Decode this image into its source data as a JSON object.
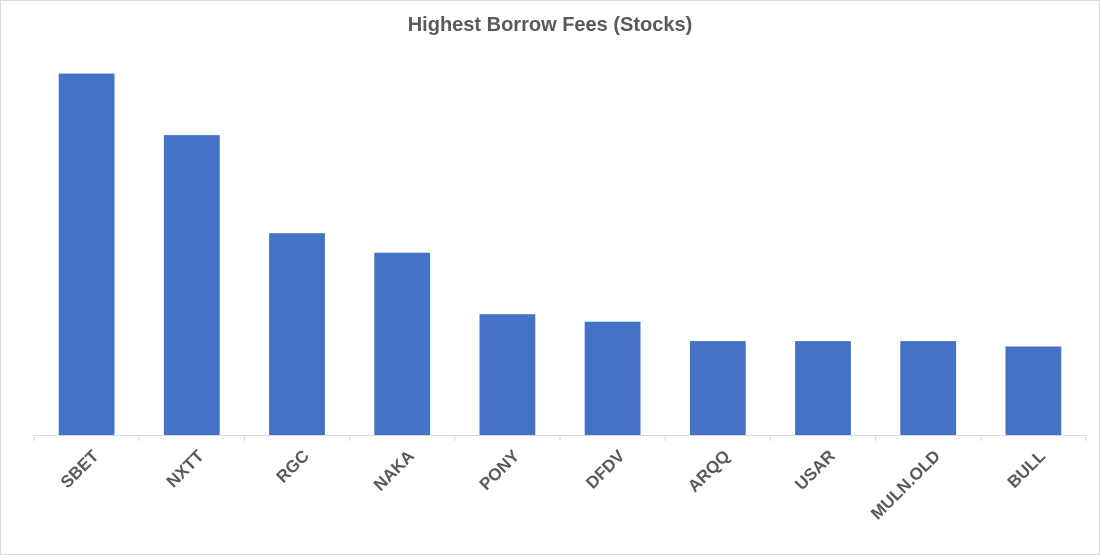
{
  "chart_data": {
    "type": "bar",
    "title": "Highest Borrow Fees (Stocks)",
    "categories": [
      "SBET",
      "NXTT",
      "RGC",
      "NAKA",
      "PONY",
      "DFDV",
      "ARQQ",
      "USAR",
      "MULN.OLD",
      "BULL"
    ],
    "values": [
      335,
      278,
      187,
      169,
      112,
      105,
      87,
      87,
      87,
      82
    ],
    "ylim": [
      0,
      380
    ],
    "grid": false,
    "legend": "none",
    "bar_color": "#4472c4",
    "axis_color": "#d9d9d9"
  }
}
